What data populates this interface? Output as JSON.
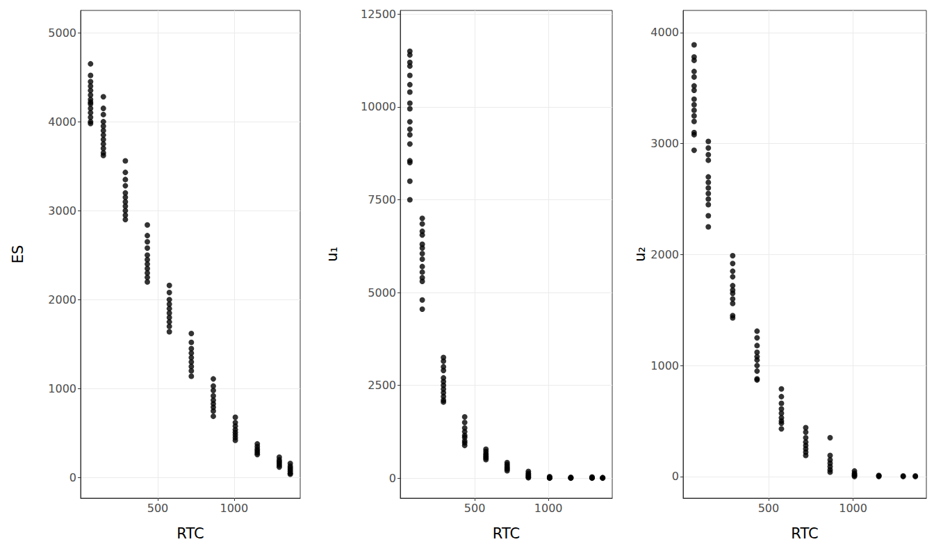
{
  "chart_data": [
    {
      "type": "scatter",
      "x_label": "RTC",
      "y_label": "ES",
      "color": "#000000",
      "marker": "circle",
      "grid": true,
      "xlim": [
        -5,
        1433
      ],
      "xticks": [
        500,
        1000
      ],
      "ylim": [
        -230,
        5250
      ],
      "yticks": [
        0,
        1000,
        2000,
        3000,
        4000,
        5000
      ],
      "x": [
        60,
        60,
        60,
        60,
        60,
        60,
        60,
        60,
        60,
        60,
        60,
        60,
        60,
        60,
        144,
        144,
        144,
        144,
        144,
        144,
        144,
        144,
        144,
        144,
        144,
        144,
        288,
        288,
        288,
        288,
        288,
        288,
        288,
        288,
        288,
        288,
        288,
        432,
        432,
        432,
        432,
        432,
        432,
        432,
        432,
        432,
        432,
        432,
        576,
        576,
        576,
        576,
        576,
        576,
        576,
        576,
        576,
        576,
        720,
        720,
        720,
        720,
        720,
        720,
        720,
        720,
        720,
        864,
        864,
        864,
        864,
        864,
        864,
        864,
        864,
        864,
        1008,
        1008,
        1008,
        1008,
        1008,
        1008,
        1008,
        1008,
        1152,
        1152,
        1152,
        1152,
        1152,
        1152,
        1296,
        1296,
        1296,
        1296,
        1296,
        1296,
        1368,
        1368,
        1368,
        1368,
        1368,
        1368,
        1368
      ],
      "values": [
        4650,
        4520,
        4450,
        4400,
        4350,
        4300,
        4250,
        4220,
        4200,
        4150,
        4100,
        4050,
        4000,
        3980,
        4280,
        4150,
        4080,
        4000,
        3950,
        3900,
        3850,
        3800,
        3750,
        3700,
        3650,
        3620,
        3560,
        3430,
        3350,
        3280,
        3200,
        3150,
        3100,
        3050,
        3000,
        2950,
        2900,
        2840,
        2720,
        2650,
        2580,
        2500,
        2450,
        2400,
        2350,
        2300,
        2250,
        2200,
        2160,
        2080,
        2000,
        1950,
        1900,
        1850,
        1800,
        1750,
        1700,
        1640,
        1620,
        1520,
        1450,
        1400,
        1350,
        1300,
        1250,
        1200,
        1140,
        1110,
        1030,
        980,
        920,
        870,
        830,
        790,
        750,
        690,
        680,
        620,
        580,
        540,
        510,
        480,
        450,
        420,
        380,
        350,
        320,
        300,
        280,
        260,
        230,
        200,
        180,
        160,
        140,
        120,
        160,
        130,
        110,
        90,
        70,
        50,
        40
      ]
    },
    {
      "type": "scatter",
      "x_label": "RTC",
      "y_label": "u₁",
      "color": "#000000",
      "marker": "circle",
      "grid": true,
      "xlim": [
        -5,
        1433
      ],
      "xticks": [
        500,
        1000
      ],
      "ylim": [
        -540,
        12600
      ],
      "yticks": [
        0,
        2500,
        5000,
        7500,
        10000,
        12500
      ],
      "x": [
        60,
        60,
        60,
        60,
        60,
        60,
        60,
        60,
        60,
        60,
        60,
        60,
        60,
        60,
        60,
        60,
        60,
        144,
        144,
        144,
        144,
        144,
        144,
        144,
        144,
        144,
        144,
        144,
        144,
        144,
        144,
        288,
        288,
        288,
        288,
        288,
        288,
        288,
        288,
        288,
        288,
        288,
        288,
        432,
        432,
        432,
        432,
        432,
        432,
        432,
        432,
        432,
        576,
        576,
        576,
        576,
        576,
        576,
        576,
        720,
        720,
        720,
        720,
        720,
        720,
        864,
        864,
        864,
        864,
        864,
        864,
        1008,
        1008,
        1008,
        1008,
        1008,
        1152,
        1152,
        1152,
        1152,
        1296,
        1296,
        1296,
        1296,
        1368,
        1368,
        1368
      ],
      "values": [
        11500,
        11400,
        11200,
        11100,
        10850,
        10600,
        10400,
        10100,
        9950,
        9600,
        9400,
        9250,
        9000,
        8550,
        8500,
        8000,
        7500,
        7000,
        6850,
        6650,
        6550,
        6300,
        6200,
        6050,
        5900,
        5700,
        5550,
        5400,
        5300,
        4800,
        4550,
        3250,
        3150,
        3000,
        2900,
        2700,
        2600,
        2500,
        2400,
        2300,
        2200,
        2100,
        2050,
        1650,
        1500,
        1350,
        1250,
        1150,
        1100,
        1000,
        950,
        880,
        780,
        720,
        660,
        620,
        580,
        540,
        500,
        420,
        370,
        320,
        280,
        240,
        200,
        180,
        130,
        90,
        60,
        30,
        10,
        40,
        20,
        10,
        5,
        0,
        20,
        10,
        5,
        0,
        30,
        15,
        5,
        0,
        15,
        5,
        0
      ]
    },
    {
      "type": "scatter",
      "x_label": "RTC",
      "y_label": "u₂",
      "color": "#000000",
      "marker": "circle",
      "grid": true,
      "xlim": [
        -5,
        1433
      ],
      "xticks": [
        500,
        1000
      ],
      "ylim": [
        -195,
        4200
      ],
      "yticks": [
        0,
        1000,
        2000,
        3000,
        4000
      ],
      "x": [
        60,
        60,
        60,
        60,
        60,
        60,
        60,
        60,
        60,
        60,
        60,
        60,
        60,
        60,
        60,
        144,
        144,
        144,
        144,
        144,
        144,
        144,
        144,
        144,
        144,
        144,
        144,
        288,
        288,
        288,
        288,
        288,
        288,
        288,
        288,
        288,
        288,
        288,
        432,
        432,
        432,
        432,
        432,
        432,
        432,
        432,
        432,
        432,
        576,
        576,
        576,
        576,
        576,
        576,
        576,
        576,
        576,
        720,
        720,
        720,
        720,
        720,
        720,
        720,
        720,
        864,
        864,
        864,
        864,
        864,
        864,
        864,
        1008,
        1008,
        1008,
        1008,
        1008,
        1152,
        1152,
        1152,
        1296,
        1296,
        1368,
        1368
      ],
      "values": [
        3890,
        3780,
        3750,
        3650,
        3600,
        3520,
        3480,
        3400,
        3350,
        3300,
        3250,
        3200,
        3100,
        3080,
        2940,
        3020,
        2960,
        2900,
        2850,
        2700,
        2650,
        2600,
        2550,
        2500,
        2450,
        2350,
        2250,
        1990,
        1920,
        1850,
        1800,
        1720,
        1680,
        1650,
        1600,
        1560,
        1450,
        1430,
        1310,
        1250,
        1180,
        1120,
        1080,
        1050,
        1000,
        950,
        880,
        870,
        790,
        720,
        660,
        610,
        570,
        530,
        500,
        480,
        430,
        440,
        400,
        350,
        310,
        280,
        250,
        220,
        190,
        350,
        190,
        150,
        120,
        90,
        60,
        40,
        50,
        30,
        20,
        10,
        0,
        10,
        5,
        0,
        5,
        0,
        5,
        0
      ]
    }
  ]
}
